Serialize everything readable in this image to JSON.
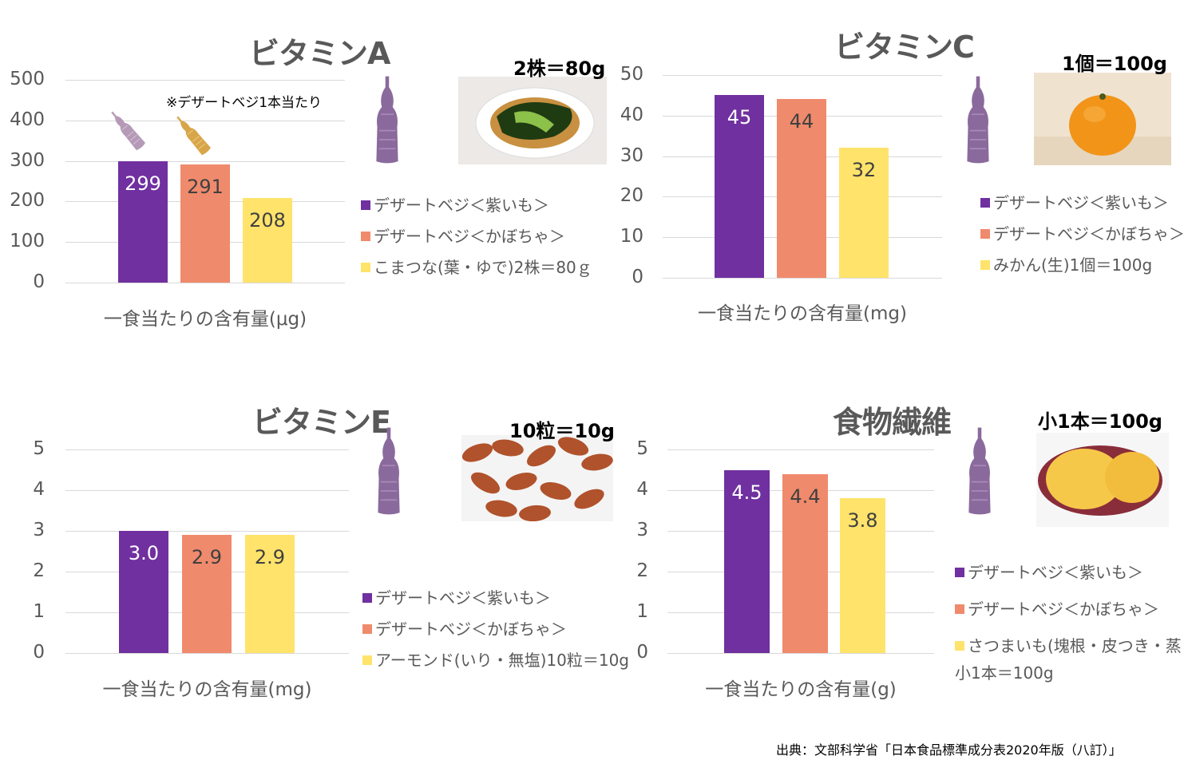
{
  "colors": {
    "purple": "#7030a0",
    "orange": "#f08a6c",
    "yellow": "#ffe36b"
  },
  "source": "出典：文部科学省「日本食品標準成分表2020年版（八訂）」",
  "chart_data": [
    {
      "type": "bar",
      "title": "ビタミンA",
      "xlabel": "一食当たりの含有量(μg)",
      "ylim": [
        0,
        500
      ],
      "yticks": [
        "0",
        "100",
        "200",
        "300",
        "400",
        "500"
      ],
      "values": [
        299,
        291,
        208
      ],
      "value_labels": [
        "299",
        "291",
        "208"
      ],
      "series": [
        {
          "name": "デザートベジ＜紫いも＞"
        },
        {
          "name": "デザートベジ＜かぼちゃ＞"
        },
        {
          "name": "こまつな(葉・ゆで)2株＝80ｇ"
        }
      ],
      "portion": "2株＝80g",
      "note": "※デザートベジ1本当たり",
      "photo": "komatsuna-photo"
    },
    {
      "type": "bar",
      "title": "ビタミンC",
      "xlabel": "一食当たりの含有量(mg)",
      "ylim": [
        0,
        50
      ],
      "yticks": [
        "0",
        "10",
        "20",
        "30",
        "40",
        "50"
      ],
      "values": [
        45,
        44,
        32
      ],
      "value_labels": [
        "45",
        "44",
        "32"
      ],
      "series": [
        {
          "name": "デザートベジ＜紫いも＞"
        },
        {
          "name": "デザートベジ＜かぼちゃ＞"
        },
        {
          "name": "みかん(生)1個＝100g"
        }
      ],
      "portion": "1個＝100g",
      "photo": "mikan-photo"
    },
    {
      "type": "bar",
      "title": "ビタミンE",
      "xlabel": "一食当たりの含有量(mg)",
      "ylim": [
        0,
        5
      ],
      "yticks": [
        "0",
        "1",
        "2",
        "3",
        "4",
        "5"
      ],
      "values": [
        3.0,
        2.9,
        2.9
      ],
      "value_labels": [
        "3.0",
        "2.9",
        "2.9"
      ],
      "series": [
        {
          "name": "デザートベジ＜紫いも＞"
        },
        {
          "name": "デザートベジ＜かぼちゃ＞"
        },
        {
          "name": "アーモンド(いり・無塩)10粒＝10g"
        }
      ],
      "portion": "10粒＝10g",
      "photo": "almond-photo"
    },
    {
      "type": "bar",
      "title": "食物繊維",
      "xlabel": "一食当たりの含有量(g)",
      "ylim": [
        0,
        5
      ],
      "yticks": [
        "0",
        "1",
        "2",
        "3",
        "4",
        "5"
      ],
      "values": [
        4.5,
        4.4,
        3.8
      ],
      "value_labels": [
        "4.5",
        "4.4",
        "3.8"
      ],
      "series": [
        {
          "name": "デザートベジ＜紫いも＞"
        },
        {
          "name": "デザートベジ＜かぼちゃ＞"
        },
        {
          "name": "さつまいも(塊根・皮つき・蒸し)",
          "name_line2": "小1本＝100g"
        }
      ],
      "portion": "小1本＝100g",
      "photo": "sweet-potato-photo"
    }
  ]
}
